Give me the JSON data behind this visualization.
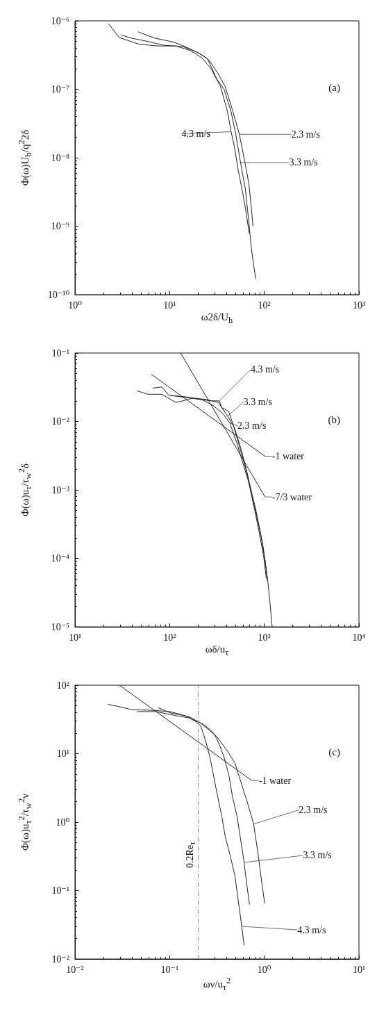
{
  "chart_data": [
    {
      "type": "line",
      "xlabel": "ω2δ/U$_{h}$",
      "ylabel": "Φ(ω)U$_{b}$/q$^{2}$2δ",
      "log": "xy",
      "marker": "none",
      "line_style": "solid",
      "grid": false,
      "legend": false,
      "annotations": [
        "(a)"
      ],
      "xlim": [
        1,
        1000
      ],
      "ylim": [
        1e-10,
        1e-06
      ],
      "xticks": [
        {
          "value": 1,
          "label": "10⁰"
        },
        {
          "value": 10,
          "label": "10¹"
        },
        {
          "value": 100,
          "label": "10²"
        },
        {
          "value": 1000,
          "label": "10³"
        }
      ],
      "yticks": [
        {
          "value": 1e-10,
          "label": "10⁻¹⁰"
        },
        {
          "value": 1e-09,
          "label": "10⁻⁹"
        },
        {
          "value": 1e-08,
          "label": "10⁻⁸"
        },
        {
          "value": 1e-07,
          "label": "10⁻⁷"
        },
        {
          "value": 1e-06,
          "label": "10⁻⁶"
        }
      ],
      "series": [
        {
          "name": "4.3 m/s",
          "color": "#222222",
          "x": [
            2.27,
            2.94,
            4.64,
            7.34,
            11.6,
            16.4,
            21.8,
            27.4,
            34.5,
            40.9,
            44.6,
            48.6,
            53.0,
            59.4,
            64.7,
            69.3
          ],
          "values": [
            9e-07,
            5.7e-07,
            4.6e-07,
            4.3e-07,
            4.3e-07,
            3.7e-07,
            2.9e-07,
            2e-07,
            1.1e-07,
            4.7e-08,
            2.4e-08,
            1.4e-08,
            6.6e-09,
            3e-09,
            1.5e-09,
            7.8e-10
          ]
        },
        {
          "name": "2.3 m/s",
          "color": "#222222",
          "x": [
            4.64,
            6.93,
            11.0,
            14.6,
            18.4,
            21.8,
            25.9,
            32.5,
            38.6,
            45.9,
            54.5,
            61.1,
            68.5,
            72.6,
            76.0
          ],
          "values": [
            6.9e-07,
            5.6e-07,
            4.9e-07,
            4.2e-07,
            3.6e-07,
            3.2e-07,
            2.7e-07,
            1.7e-07,
            1.1e-07,
            5.1e-08,
            2.2e-08,
            1e-08,
            4.3e-09,
            2e-09,
            1e-09
          ]
        },
        {
          "name": "3.3 m/s",
          "color": "#222222",
          "x": [
            3.11,
            3.91,
            5.51,
            8.71,
            13.8,
            19.4,
            25.1,
            31.6,
            37.6,
            44.6,
            50.0,
            56.1,
            62.9,
            68.5,
            72.6,
            76.9,
            81.3
          ],
          "values": [
            6.2e-07,
            5.6e-07,
            5.1e-07,
            4.4e-07,
            4.2e-07,
            3.5e-07,
            2.8e-07,
            1.4e-07,
            1e-07,
            4.7e-08,
            2.2e-08,
            8.5e-09,
            3.6e-09,
            1.2e-09,
            5.1e-10,
            2.8e-10,
            1.7e-10
          ]
        }
      ]
    },
    {
      "type": "line",
      "xlabel": "ωδ/u$_{τ}$",
      "ylabel": "Φ(ω)u$_{τ}$/τ$_{w}$$^{2}$δ",
      "log": "xy",
      "marker": "none",
      "line_style": "solid",
      "grid": false,
      "legend": false,
      "annotations": [
        "(b)"
      ],
      "xlim": [
        10,
        10000
      ],
      "ylim": [
        1e-05,
        0.1
      ],
      "xticks": [
        {
          "value": 10,
          "label": "10¹"
        },
        {
          "value": 100,
          "label": "10²"
        },
        {
          "value": 1000,
          "label": "10³"
        },
        {
          "value": 10000,
          "label": "10⁴"
        }
      ],
      "yticks": [
        {
          "value": 1e-05,
          "label": "10⁻⁵"
        },
        {
          "value": 0.0001,
          "label": "10⁻⁴"
        },
        {
          "value": 0.001,
          "label": "10⁻³"
        },
        {
          "value": 0.01,
          "label": "10⁻²"
        },
        {
          "value": 0.1,
          "label": "10⁻¹"
        }
      ],
      "series": [
        {
          "name": "4.3 m/s",
          "color": "#222222",
          "x": [
            65.8,
            82.7,
            98.2,
            146,
            206,
            274,
            335,
            355,
            421,
            472,
            544,
            646,
            766,
            859,
            964,
            1080,
            1143,
            1211
          ],
          "values": [
            0.0307,
            0.032,
            0.024,
            0.023,
            0.021,
            0.02,
            0.02,
            0.016,
            0.014,
            0.0087,
            0.0044,
            0.0019,
            0.00067,
            0.00034,
            0.00016,
            5.1e-05,
            2.4e-05,
            1e-05
          ]
        },
        {
          "name": "3.3 m/s",
          "color": "#222222",
          "x": [
            45.4,
            58.7,
            82.7,
            116,
            138,
            174,
            245,
            326,
            409,
            486,
            576,
            646,
            724,
            812,
            910,
            1019,
            1080
          ],
          "values": [
            0.028,
            0.025,
            0.025,
            0.019,
            0.02,
            0.022,
            0.021,
            0.019,
            0.012,
            0.008,
            0.0037,
            0.002,
            0.001,
            0.00052,
            0.00024,
            9.3e-05,
            4.7e-05
          ]
        },
        {
          "name": "2.3 m/s",
          "color": "#222222",
          "x": [
            104,
            164,
            218,
            290,
            365,
            433,
            514,
            610,
            684,
            789,
            884,
            991,
            1049
          ],
          "values": [
            0.024,
            0.022,
            0.021,
            0.017,
            0.013,
            0.0095,
            0.0048,
            0.0022,
            0.0013,
            0.00052,
            0.00024,
            0.0001,
            5.1e-05
          ]
        },
        {
          "name": "-1 water",
          "color": "#222222",
          "x": [
            64,
            1019
          ],
          "values": [
            0.049,
            0.0031
          ]
        },
        {
          "name": "-7/3 water",
          "color": "#222222",
          "x": [
            130.6,
            1019
          ],
          "values": [
            0.1,
            0.00079
          ]
        }
      ]
    },
    {
      "type": "line",
      "xlabel": "ων/u$_{τ}$$^{2}$",
      "ylabel": "Φ(ω)u$_{τ}$$^{2}$/τ$_{w}$$^{2}$ν",
      "log": "xy",
      "marker": "none",
      "line_style": "solid",
      "grid": false,
      "legend": false,
      "annotations": [
        "(c)"
      ],
      "xlim": [
        0.01,
        10
      ],
      "ylim": [
        0.01,
        100
      ],
      "xticks": [
        {
          "value": 0.01,
          "label": "10⁻²"
        },
        {
          "value": 0.1,
          "label": "10⁻¹"
        },
        {
          "value": 1,
          "label": "10⁰"
        },
        {
          "value": 10,
          "label": "10¹"
        }
      ],
      "yticks": [
        {
          "value": 0.01,
          "label": "10⁻²"
        },
        {
          "value": 0.1,
          "label": "10⁻¹"
        },
        {
          "value": 1,
          "label": "10⁰"
        },
        {
          "value": 10,
          "label": "10¹"
        },
        {
          "value": 100,
          "label": "10²"
        }
      ],
      "ref_lines": [
        {
          "axis": "x",
          "value": 0.2,
          "label": "0.2Re$_{τ}$",
          "color": "#888888",
          "line_style": "dashed"
        }
      ],
      "series": [
        {
          "name": "-1 water",
          "color": "#222222",
          "x": [
            0.0295,
            0.74
          ],
          "values": [
            100,
            4.04
          ]
        },
        {
          "name": "2.3 m/s",
          "color": "#222222",
          "x": [
            0.0453,
            0.0716,
            0.113,
            0.16,
            0.212,
            0.267,
            0.317,
            0.399,
            0.488,
            0.562,
            0.668,
            0.771,
            0.863,
            0.941,
            1.01
          ],
          "values": [
            41.2,
            41.2,
            36.2,
            33.3,
            28.0,
            21.6,
            17.5,
            11.4,
            7.4,
            4.0,
            1.87,
            0.94,
            0.33,
            0.13,
            0.065
          ]
        },
        {
          "name": "3.3 m/s",
          "color": "#222222",
          "x": [
            0.0759,
            0.101,
            0.16,
            0.225,
            0.267,
            0.299,
            0.336,
            0.377,
            0.423,
            0.46,
            0.516,
            0.562,
            0.612,
            0.649,
            0.698
          ],
          "values": [
            46.9,
            39.5,
            34.8,
            26.9,
            22.6,
            19.0,
            13.5,
            8.8,
            4.8,
            2.4,
            1.21,
            0.56,
            0.258,
            0.13,
            0.0625
          ]
        },
        {
          "name": "4.3 m/s",
          "color": "#222222",
          "x": [
            0.0222,
            0.0286,
            0.0404,
            0.0639,
            0.101,
            0.151,
            0.19,
            0.212,
            0.238,
            0.267,
            0.291,
            0.317,
            0.356,
            0.387,
            0.435,
            0.488,
            0.531,
            0.578,
            0.612
          ],
          "values": [
            52.5,
            49,
            43.8,
            43.1,
            41.2,
            35.3,
            29.2,
            25.7,
            16.0,
            8.8,
            4.8,
            2.6,
            1.21,
            0.61,
            0.33,
            0.168,
            0.071,
            0.03,
            0.0158
          ]
        }
      ]
    }
  ]
}
